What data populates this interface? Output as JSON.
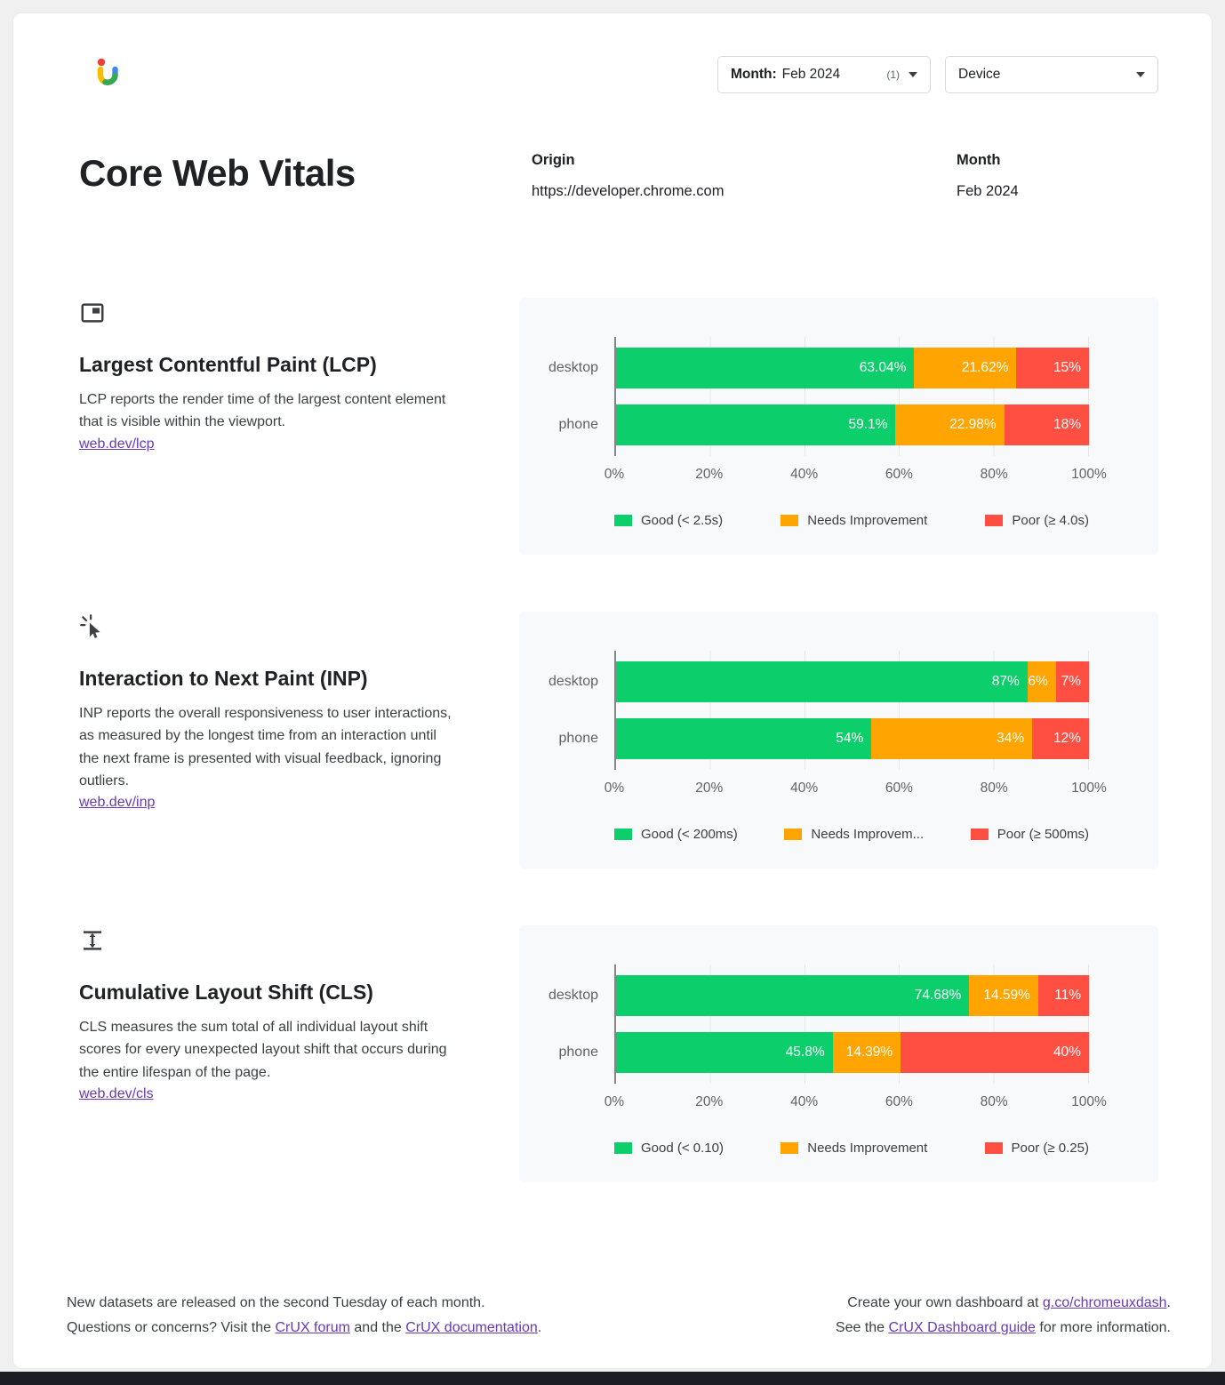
{
  "toolbar": {
    "month_filter": {
      "label": "Month:",
      "value": "Feb 2024",
      "count": "(1)"
    },
    "device_filter": {
      "label": "Device"
    }
  },
  "page": {
    "title": "Core Web Vitals",
    "origin_label": "Origin",
    "origin_value": "https://developer.chrome.com",
    "month_label": "Month",
    "month_value": "Feb 2024"
  },
  "sections": [
    {
      "heading": "Largest Contentful Paint (LCP)",
      "description": "LCP reports the render time of the largest content element that is visible within the viewport.",
      "link": "web.dev/lcp"
    },
    {
      "heading": "Interaction to Next Paint (INP)",
      "description": "INP reports the overall responsiveness to user interactions, as measured by the longest time from an interaction until the next frame is presented with visual feedback, ignoring outliers.",
      "link": "web.dev/inp"
    },
    {
      "heading": "Cumulative Layout Shift (CLS)",
      "description": "CLS measures the sum total of all individual layout shift scores for every unexpected layout shift that occurs during the entire lifespan of the page.",
      "link": "web.dev/cls"
    }
  ],
  "chart_data": [
    {
      "type": "bar",
      "metric": "LCP",
      "orientation": "horizontal-stacked",
      "categories": [
        "desktop",
        "phone"
      ],
      "series": [
        {
          "name": "Good (< 2.5s)",
          "color": "#0cce6b",
          "values": [
            63.04,
            59.1
          ],
          "labels": [
            "63.04%",
            "59.1%"
          ]
        },
        {
          "name": "Needs Improvement",
          "color": "#ffa400",
          "values": [
            21.62,
            22.98
          ],
          "labels": [
            "21.62%",
            "22.98%"
          ]
        },
        {
          "name": "Poor (≥ 4.0s)",
          "color": "#ff4e42",
          "values": [
            15.34,
            17.92
          ],
          "labels": [
            "15%",
            "18%"
          ]
        }
      ],
      "x_ticks": [
        "0%",
        "20%",
        "40%",
        "60%",
        "80%",
        "100%"
      ],
      "xlim": [
        0,
        100
      ],
      "grid": true,
      "legend_position": "bottom"
    },
    {
      "type": "bar",
      "metric": "INP",
      "orientation": "horizontal-stacked",
      "categories": [
        "desktop",
        "phone"
      ],
      "series": [
        {
          "name": "Good (< 200ms)",
          "color": "#0cce6b",
          "values": [
            87,
            54
          ],
          "labels": [
            "87%",
            "54%"
          ]
        },
        {
          "name": "Needs Improvem...",
          "color": "#ffa400",
          "values": [
            6,
            34
          ],
          "labels": [
            "6%",
            "34%"
          ]
        },
        {
          "name": "Poor (≥ 500ms)",
          "color": "#ff4e42",
          "values": [
            7,
            12
          ],
          "labels": [
            "7%",
            "12%"
          ]
        }
      ],
      "x_ticks": [
        "0%",
        "20%",
        "40%",
        "60%",
        "80%",
        "100%"
      ],
      "xlim": [
        0,
        100
      ],
      "grid": true,
      "legend_position": "bottom"
    },
    {
      "type": "bar",
      "metric": "CLS",
      "orientation": "horizontal-stacked",
      "categories": [
        "desktop",
        "phone"
      ],
      "series": [
        {
          "name": "Good (< 0.10)",
          "color": "#0cce6b",
          "values": [
            74.68,
            45.8
          ],
          "labels": [
            "74.68%",
            "45.8%"
          ]
        },
        {
          "name": "Needs Improvement",
          "color": "#ffa400",
          "values": [
            14.59,
            14.39
          ],
          "labels": [
            "14.59%",
            "14.39%"
          ]
        },
        {
          "name": "Poor (≥ 0.25)",
          "color": "#ff4e42",
          "values": [
            10.73,
            39.81
          ],
          "labels": [
            "11%",
            "40%"
          ]
        }
      ],
      "x_ticks": [
        "0%",
        "20%",
        "40%",
        "60%",
        "80%",
        "100%"
      ],
      "xlim": [
        0,
        100
      ],
      "grid": true,
      "legend_position": "bottom"
    }
  ],
  "footer": {
    "left_line1": "New datasets are released on the second Tuesday of each month.",
    "left_line2": {
      "prefix": "Questions or concerns? Visit the ",
      "link1": "CrUX forum",
      "middle": " and the ",
      "link2": "CrUX documentation",
      "suffix": "."
    },
    "right_line1": {
      "prefix": "Create your own dashboard at ",
      "link": "g.co/chromeuxdash",
      "suffix": "."
    },
    "right_line2": {
      "prefix": "See the ",
      "link": "CrUX Dashboard guide",
      "suffix": " for more information."
    }
  }
}
